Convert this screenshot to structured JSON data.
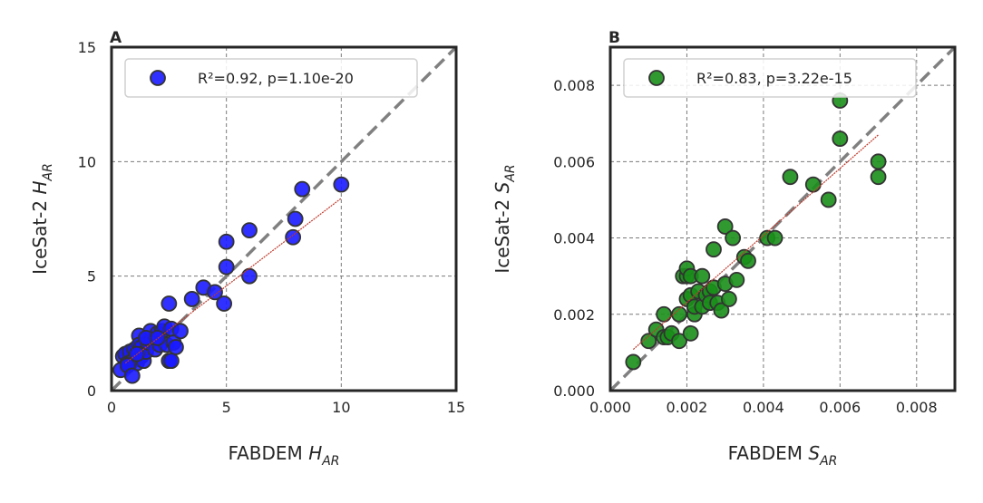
{
  "chart_data": [
    {
      "type": "scatter",
      "panel_label": "A",
      "xlabel": {
        "prefix": "FABDEM ",
        "var": "H",
        "sub": "AR"
      },
      "ylabel": {
        "prefix": "IceSat-2 ",
        "var": "H",
        "sub": "AR"
      },
      "xlim": [
        0,
        15
      ],
      "ylim": [
        0,
        15
      ],
      "xticks": [
        0,
        5,
        10,
        15
      ],
      "yticks": [
        0,
        5,
        10,
        15
      ],
      "xtick_labels": [
        "0",
        "5",
        "10",
        "15"
      ],
      "ytick_labels": [
        "0",
        "5",
        "10",
        "15"
      ],
      "grid": true,
      "legend_position": "top-left",
      "one_to_one_line": true,
      "fit_line": {
        "x": [
          0.6,
          10.0
        ],
        "y": [
          1.2,
          8.4
        ]
      },
      "series": [
        {
          "name": "R²=0.92, p=1.10e-20",
          "color": "#1a1aff",
          "x": [
            0.4,
            0.5,
            0.6,
            0.7,
            0.8,
            0.9,
            1.0,
            1.0,
            1.1,
            1.2,
            1.2,
            1.3,
            1.3,
            1.4,
            1.5,
            1.6,
            1.7,
            1.8,
            1.9,
            2.0,
            2.1,
            2.2,
            2.3,
            2.4,
            2.5,
            2.6,
            2.7,
            2.8,
            3.0,
            0.7,
            0.9,
            1.1,
            1.5,
            2.0,
            2.5,
            2.6,
            3.5,
            4.0,
            4.5,
            4.9,
            5.0,
            5.0,
            6.0,
            6.0,
            7.9,
            8.0,
            8.3,
            10.0
          ],
          "y": [
            0.9,
            1.5,
            1.6,
            1.2,
            1.7,
            1.3,
            1.4,
            1.8,
            1.2,
            2.4,
            2.0,
            1.5,
            1.9,
            1.3,
            1.7,
            2.1,
            2.6,
            2.2,
            1.8,
            2.5,
            2.0,
            2.6,
            2.8,
            2.0,
            1.3,
            2.7,
            2.1,
            1.9,
            2.6,
            1.1,
            0.65,
            1.6,
            2.3,
            2.3,
            3.8,
            1.3,
            4.0,
            4.5,
            4.3,
            3.8,
            5.4,
            6.5,
            5.0,
            7.0,
            6.7,
            7.5,
            8.8,
            9.0
          ]
        }
      ]
    },
    {
      "type": "scatter",
      "panel_label": "B",
      "xlabel": {
        "prefix": "FABDEM ",
        "var": "S",
        "sub": "AR"
      },
      "ylabel": {
        "prefix": "IceSat-2 ",
        "var": "S",
        "sub": "AR"
      },
      "xlim": [
        0,
        0.009
      ],
      "ylim": [
        0,
        0.009
      ],
      "xticks": [
        0,
        0.002,
        0.004,
        0.006,
        0.008
      ],
      "yticks": [
        0,
        0.002,
        0.004,
        0.006,
        0.008
      ],
      "xtick_labels": [
        "0.000",
        "0.002",
        "0.004",
        "0.006",
        "0.008"
      ],
      "ytick_labels": [
        "0.000",
        "0.002",
        "0.004",
        "0.006",
        "0.008"
      ],
      "grid": true,
      "legend_position": "top-left",
      "one_to_one_line": true,
      "fit_line": {
        "x": [
          0.0006,
          0.007
        ],
        "y": [
          0.00108,
          0.0067
        ]
      },
      "series": [
        {
          "name": "R²=0.83, p=3.22e-15",
          "color": "#1a8f1a",
          "x": [
            0.0006,
            0.001,
            0.0012,
            0.0014,
            0.0014,
            0.0015,
            0.0016,
            0.0018,
            0.0018,
            0.0019,
            0.002,
            0.002,
            0.002,
            0.0021,
            0.0021,
            0.0021,
            0.0022,
            0.0022,
            0.0023,
            0.0024,
            0.0024,
            0.0025,
            0.0026,
            0.0026,
            0.0027,
            0.0027,
            0.0028,
            0.0029,
            0.003,
            0.003,
            0.0031,
            0.0032,
            0.0033,
            0.0035,
            0.0036,
            0.0041,
            0.0043,
            0.0047,
            0.0053,
            0.0057,
            0.006,
            0.006,
            0.007,
            0.007
          ],
          "y": [
            0.00075,
            0.0013,
            0.0016,
            0.0014,
            0.002,
            0.0014,
            0.0015,
            0.0013,
            0.002,
            0.003,
            0.003,
            0.0032,
            0.0024,
            0.003,
            0.0025,
            0.0015,
            0.002,
            0.0022,
            0.0026,
            0.003,
            0.0022,
            0.0025,
            0.0026,
            0.0023,
            0.0027,
            0.0037,
            0.0023,
            0.0021,
            0.0028,
            0.0043,
            0.0024,
            0.004,
            0.0029,
            0.0035,
            0.0034,
            0.004,
            0.004,
            0.0056,
            0.0054,
            0.005,
            0.0066,
            0.0076,
            0.0056,
            0.006
          ]
        }
      ]
    }
  ]
}
